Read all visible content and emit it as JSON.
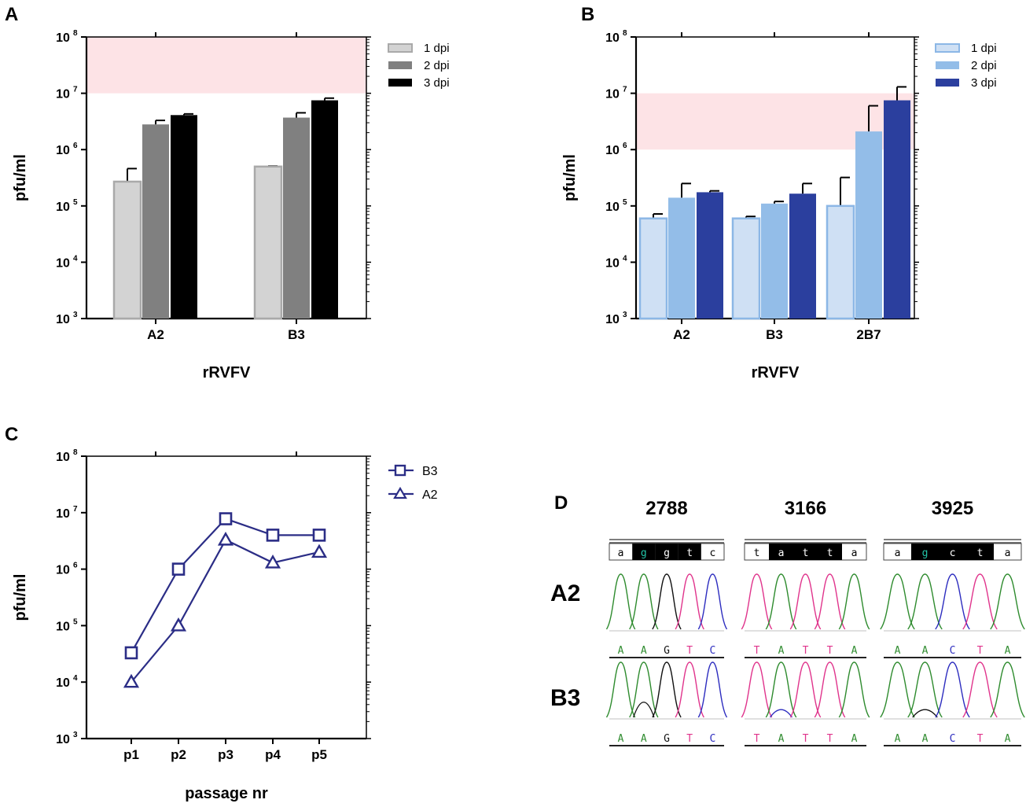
{
  "colors": {
    "band": "#fde3e6",
    "a_1dpi": "#d3d3d3",
    "a_1dpi_edge": "#a9a9a9",
    "a_2dpi": "#808080",
    "a_3dpi": "#000000",
    "b_1dpi": "#cfe0f4",
    "b_1dpi_edge": "#8cb7e6",
    "b_2dpi": "#93bde8",
    "b_3dpi": "#2b3f9e",
    "c_line": "#2b2d86",
    "base_A": "#2e8b2e",
    "base_C": "#2d2dbf",
    "base_G": "#111111",
    "base_T": "#e0348c",
    "hl_g": "#22c5a8"
  },
  "chart_data": [
    {
      "panel": "A",
      "type": "bar",
      "scale": "log",
      "ylim": [
        1000,
        100000000
      ],
      "ylabel": "pfu/ml",
      "xlabel": "rRVFV",
      "categories": [
        "A2",
        "B3"
      ],
      "series": [
        {
          "name": "1 dpi",
          "values": [
            270000,
            500000
          ],
          "errors": [
            460000,
            510000
          ]
        },
        {
          "name": "2 dpi",
          "values": [
            2800000,
            3700000
          ],
          "errors": [
            3300000,
            4500000
          ]
        },
        {
          "name": "3 dpi",
          "values": [
            4100000,
            7500000
          ],
          "errors": [
            4300000,
            8200000
          ]
        }
      ],
      "shaded_range": [
        10000000,
        100000000
      ]
    },
    {
      "panel": "B",
      "type": "bar",
      "scale": "log",
      "ylim": [
        1000,
        100000000
      ],
      "ylabel": "pfu/ml",
      "xlabel": "rRVFV",
      "categories": [
        "A2",
        "B3",
        "2B7"
      ],
      "series": [
        {
          "name": "1 dpi",
          "values": [
            60000,
            60000,
            100000
          ],
          "errors": [
            72000,
            65000,
            320000
          ]
        },
        {
          "name": "2 dpi",
          "values": [
            140000,
            110000,
            2100000
          ],
          "errors": [
            250000,
            120000,
            6000000
          ]
        },
        {
          "name": "3 dpi",
          "values": [
            175000,
            165000,
            7500000
          ],
          "errors": [
            185000,
            250000,
            13000000
          ]
        }
      ],
      "shaded_range": [
        1000000,
        10000000
      ]
    },
    {
      "panel": "C",
      "type": "line",
      "scale": "log",
      "ylim": [
        1000,
        100000000
      ],
      "ylabel": "pfu/ml",
      "xlabel": "passage nr",
      "categories": [
        "p1",
        "p2",
        "p3",
        "p4",
        "p5"
      ],
      "series": [
        {
          "name": "B3",
          "marker": "square",
          "values": [
            33000,
            1000000,
            7800000,
            4000000,
            4000000
          ]
        },
        {
          "name": "A2",
          "marker": "triangle",
          "values": [
            10000,
            100000,
            3300000,
            1300000,
            2000000
          ]
        }
      ]
    }
  ],
  "panels": {
    "a": {
      "letter": "A"
    },
    "b": {
      "letter": "B"
    },
    "c": {
      "letter": "C"
    },
    "d": {
      "letter": "D"
    }
  },
  "ticks": [
    {
      "base": "10",
      "exp": "8",
      "value": 100000000
    },
    {
      "base": "10",
      "exp": "7",
      "value": 10000000
    },
    {
      "base": "10",
      "exp": "6",
      "value": 1000000
    },
    {
      "base": "10",
      "exp": "5",
      "value": 100000
    },
    {
      "base": "10",
      "exp": "4",
      "value": 10000
    },
    {
      "base": "10",
      "exp": "3",
      "value": 1000
    }
  ],
  "sequencing": {
    "positions": [
      "2788",
      "3166",
      "3925"
    ],
    "rows": [
      "A2",
      "B3"
    ],
    "reference": [
      [
        "a",
        "g",
        "g",
        "t",
        "c"
      ],
      [
        "t",
        "a",
        "t",
        "t",
        "a"
      ],
      [
        "a",
        "g",
        "c",
        "t",
        "a"
      ]
    ],
    "calls": [
      [
        "A",
        "A",
        "G",
        "T",
        "C"
      ],
      [
        "T",
        "A",
        "T",
        "T",
        "A"
      ],
      [
        "A",
        "A",
        "C",
        "T",
        "A"
      ]
    ]
  }
}
